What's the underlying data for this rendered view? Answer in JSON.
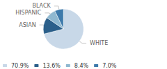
{
  "chart_data": {
    "type": "pie",
    "categories": [
      "WHITE",
      "ASIAN",
      "HISPANIC",
      "BLACK"
    ],
    "values": [
      70.9,
      13.6,
      8.4,
      7.0
    ],
    "value_labels": [
      "70.9%",
      "13.6%",
      "8.4%",
      "7.0%"
    ],
    "colors": [
      "#c8d8e8",
      "#2b5f8a",
      "#8fb8d0",
      "#3d7aab"
    ],
    "legend": "lower left"
  }
}
